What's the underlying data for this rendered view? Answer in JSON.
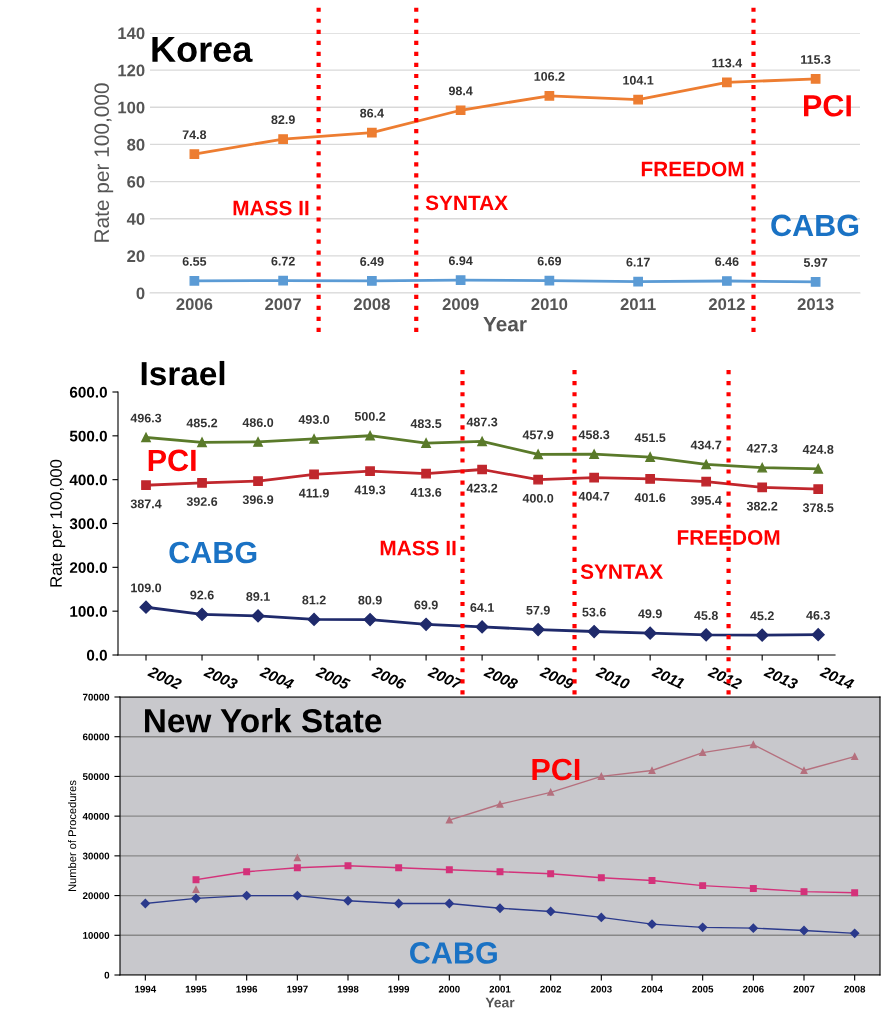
{
  "chart_data": [
    {
      "type": "line",
      "title": "Korea",
      "xlabel": "Year",
      "ylabel": "Rate per 100,000",
      "x": [
        2006,
        2007,
        2008,
        2009,
        2010,
        2011,
        2012,
        2013
      ],
      "xlim": [
        2005.5,
        2013.5
      ],
      "xticks": [
        2006,
        2007,
        2008,
        2009,
        2010,
        2011,
        2012,
        2013
      ],
      "ylim": [
        0,
        140
      ],
      "yticks": [
        0,
        20,
        40,
        60,
        80,
        100,
        120,
        140
      ],
      "grid": "y",
      "data_labels": true,
      "annotations": [
        "PCI",
        "CABG"
      ],
      "series": [
        {
          "color": "#ed7d31",
          "marker": "square",
          "values": [
            74.8,
            82.9,
            86.4,
            98.4,
            106.2,
            104.1,
            113.4,
            115.3
          ]
        },
        {
          "color": "#5b9bd5",
          "marker": "square",
          "values": [
            6.55,
            6.72,
            6.49,
            6.94,
            6.69,
            6.17,
            6.46,
            5.97
          ]
        }
      ],
      "ref_lines": [
        {
          "axis": "x",
          "value": 2007.4,
          "label": "MASS II",
          "color": "#ff0000",
          "line_style": "dotted"
        },
        {
          "axis": "x",
          "value": 2008.5,
          "label": "SYNTAX",
          "color": "#ff0000",
          "line_style": "dotted"
        },
        {
          "axis": "x",
          "value": 2012.3,
          "label": "FREEDOM",
          "color": "#ff0000",
          "line_style": "dotted"
        }
      ]
    },
    {
      "type": "line",
      "title": "Israel",
      "ylabel": "Rate per 100,000",
      "x": [
        2002,
        2003,
        2004,
        2005,
        2006,
        2007,
        2008,
        2009,
        2010,
        2011,
        2012,
        2013,
        2014
      ],
      "xlim": [
        2001.5,
        2014.3
      ],
      "xticks": [
        2002,
        2003,
        2004,
        2005,
        2006,
        2007,
        2008,
        2009,
        2010,
        2011,
        2012,
        2013,
        2014
      ],
      "ylim": [
        0,
        600
      ],
      "yticks": [
        {
          "value": 0,
          "label": "0.0"
        },
        {
          "value": 100,
          "label": "100.0"
        },
        {
          "value": 200,
          "label": "200.0"
        },
        {
          "value": 300,
          "label": "300.0"
        },
        {
          "value": 400,
          "label": "400.0"
        },
        {
          "value": 500,
          "label": "500.0"
        },
        {
          "value": 600,
          "label": "600.0"
        }
      ],
      "grid": false,
      "annotations": [
        "PCI",
        "CABG"
      ],
      "series": [
        {
          "color": "#5a7a2a",
          "marker": "triangle",
          "values": [
            496.3,
            485.2,
            486.0,
            493.0,
            500.2,
            483.5,
            487.3,
            457.9,
            458.3,
            451.5,
            434.7,
            427.3,
            424.8
          ],
          "value_labels": [
            "496.3",
            "485.2",
            "486.0",
            "493.0",
            "500.2",
            "483.5",
            "487.3",
            "457.9",
            "458.3",
            "451.5",
            "434.7",
            "427.3",
            "424.8"
          ]
        },
        {
          "color": "#c0272d",
          "marker": "square",
          "values": [
            387.4,
            392.6,
            396.9,
            411.9,
            419.3,
            413.6,
            423.2,
            400.0,
            404.7,
            401.6,
            395.4,
            382.2,
            378.5
          ],
          "value_labels": [
            "387.4",
            "392.6",
            "396.9",
            "411.9",
            "419.3",
            "413.6",
            "423.2",
            "400.0",
            "404.7",
            "401.6",
            "395.4",
            "382.2",
            "378.5"
          ]
        },
        {
          "color": "#1f2a6b",
          "marker": "diamond",
          "values": [
            109.0,
            92.6,
            89.1,
            81.2,
            80.9,
            69.9,
            64.1,
            57.9,
            53.6,
            49.9,
            45.8,
            45.2,
            46.3
          ],
          "value_labels": [
            "109.0",
            "92.6",
            "89.1",
            "81.2",
            "80.9",
            "69.9",
            "64.1",
            "57.9",
            "53.6",
            "49.9",
            "45.8",
            "45.2",
            "46.3"
          ]
        }
      ],
      "ref_lines": [
        {
          "axis": "x",
          "value": 2007.65,
          "label": "MASS II",
          "color": "#ff0000",
          "line_style": "dotted"
        },
        {
          "axis": "x",
          "value": 2009.65,
          "label": "SYNTAX",
          "color": "#ff0000",
          "line_style": "dotted"
        },
        {
          "axis": "x",
          "value": 2012.4,
          "label": "FREEDOM",
          "color": "#ff0000",
          "line_style": "dotted"
        }
      ]
    },
    {
      "type": "line",
      "title": "New York State",
      "xlabel": "Year",
      "ylabel": "Number of Procedures",
      "x": [
        1994,
        1995,
        1996,
        1997,
        1998,
        1999,
        2000,
        2001,
        2002,
        2003,
        2004,
        2005,
        2006,
        2007,
        2008
      ],
      "xlim": [
        1993.5,
        2008.5
      ],
      "xticks": [
        1994,
        1995,
        1996,
        1997,
        1998,
        1999,
        2000,
        2001,
        2002,
        2003,
        2004,
        2005,
        2006,
        2007,
        2008
      ],
      "ylim": [
        0,
        70000
      ],
      "yticks": [
        0,
        10000,
        20000,
        30000,
        40000,
        50000,
        60000,
        70000
      ],
      "grid": "y",
      "annotations": [
        "PCI",
        "CABG"
      ],
      "series": [
        {
          "color": "#b5707e",
          "marker": "triangle",
          "values": [
            null,
            21500,
            null,
            29500,
            null,
            null,
            39000,
            43000,
            46000,
            50000,
            51500,
            56000,
            58000,
            51500,
            55000
          ]
        },
        {
          "color": "#d4327a",
          "marker": "square",
          "values": [
            null,
            24000,
            26000,
            27000,
            27500,
            27000,
            26500,
            26000,
            25500,
            24500,
            23800,
            22500,
            21800,
            21000,
            20700
          ]
        },
        {
          "color": "#2b3a8c",
          "marker": "diamond",
          "values": [
            18000,
            19300,
            20000,
            20000,
            18700,
            18000,
            18000,
            16800,
            16000,
            14500,
            12800,
            12000,
            11800,
            11200,
            10500
          ]
        }
      ]
    }
  ]
}
